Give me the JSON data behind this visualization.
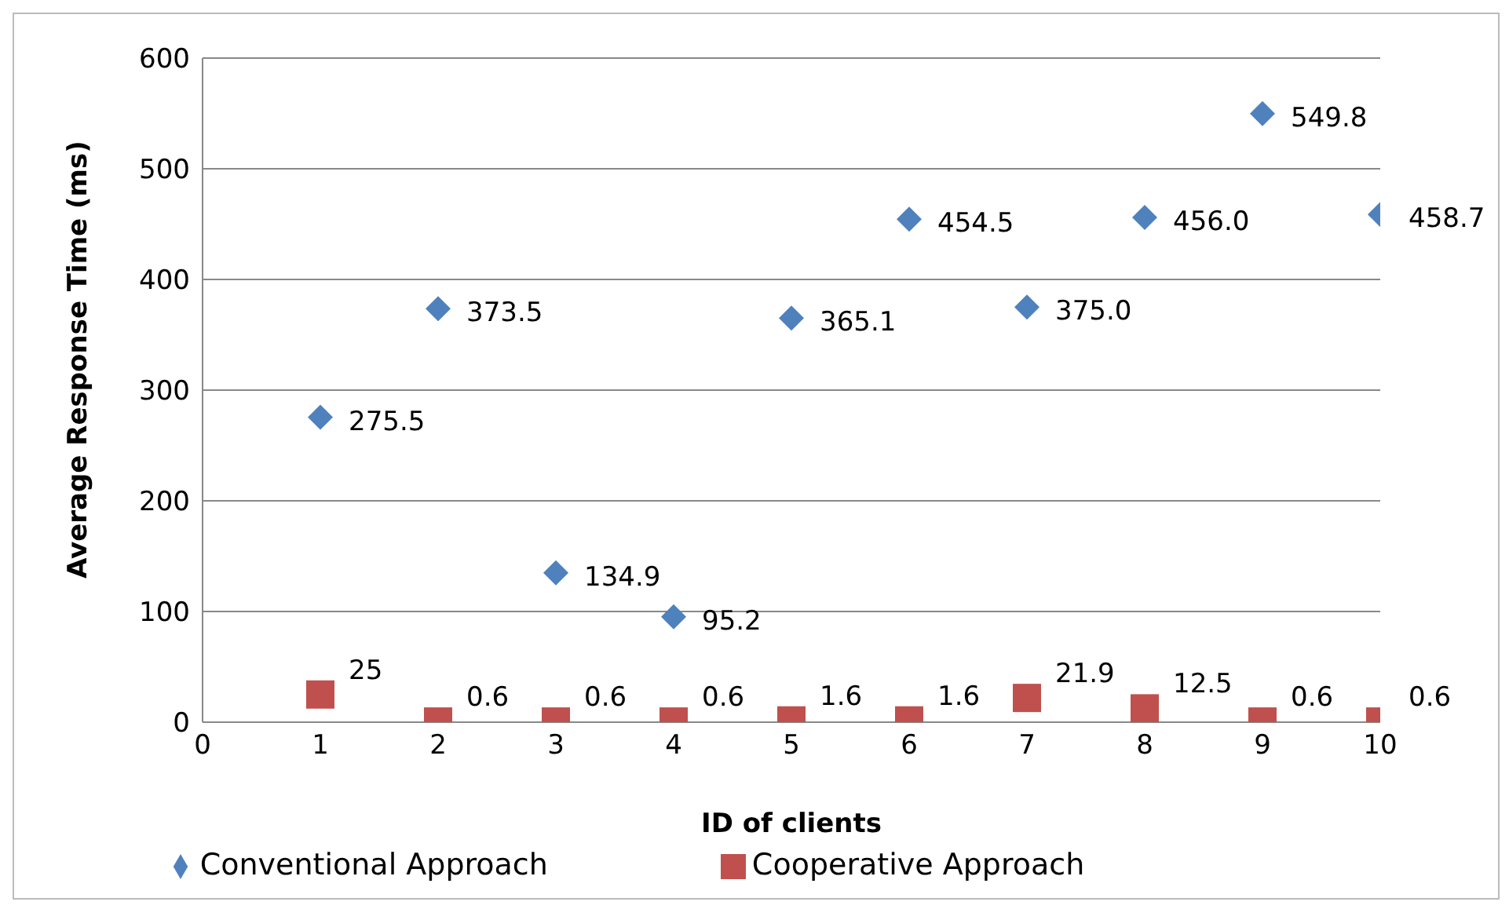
{
  "chart_data": {
    "type": "scatter",
    "xlabel": "ID of clients",
    "ylabel": "Average Response Time (ms)",
    "x": [
      1,
      2,
      3,
      4,
      5,
      6,
      7,
      8,
      9,
      10
    ],
    "xlim": [
      0,
      10
    ],
    "xticks": [
      0,
      1,
      2,
      3,
      4,
      5,
      6,
      7,
      8,
      9,
      10
    ],
    "ylim": [
      0,
      600
    ],
    "yticks": [
      0,
      100,
      200,
      300,
      400,
      500,
      600
    ],
    "grid": "y",
    "legend": "bottom",
    "series": [
      {
        "name": "Conventional Approach",
        "color": "#4f81bd",
        "marker": "diamond",
        "values": [
          275.5,
          373.5,
          134.9,
          95.2,
          365.1,
          454.5,
          375.0,
          456.0,
          549.8,
          458.7
        ],
        "value_labels": [
          "275.5",
          "373.5",
          "134.9",
          "95.2",
          "365.1",
          "454.5",
          "375.0",
          "456.0",
          "549.8",
          "458.7"
        ]
      },
      {
        "name": "Cooperative Approach",
        "color": "#c0504d",
        "marker": "square",
        "values": [
          25,
          0.6,
          0.6,
          0.6,
          1.6,
          1.6,
          21.9,
          12.5,
          0.6,
          0.6
        ],
        "value_labels": [
          "25",
          "0.6",
          "0.6",
          "0.6",
          "1.6",
          "1.6",
          "21.9",
          "12.5",
          "0.6",
          "0.6"
        ]
      }
    ]
  }
}
